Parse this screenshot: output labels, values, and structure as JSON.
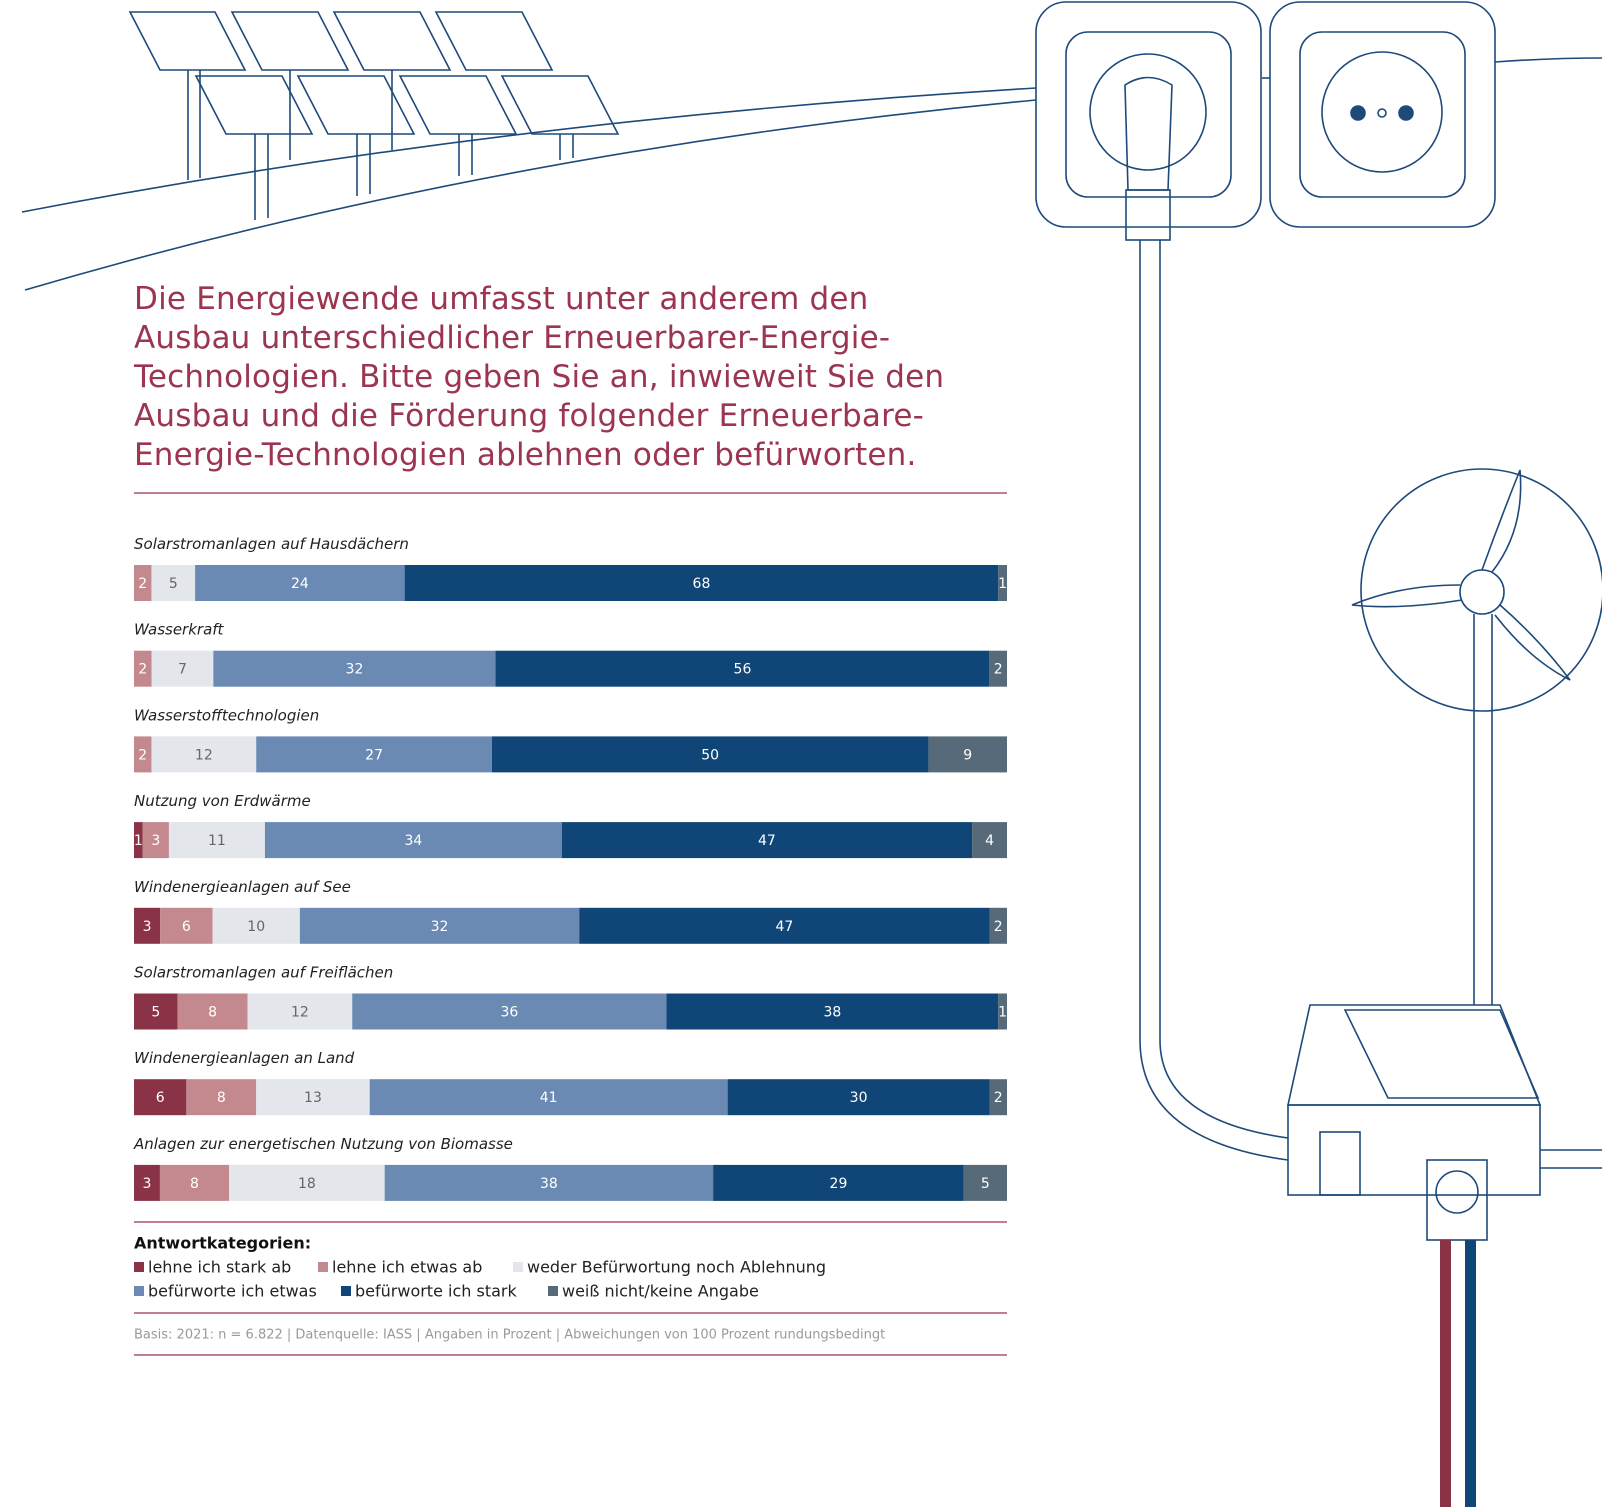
{
  "chart_data": {
    "type": "stacked-bar-horizontal",
    "title": "Die Energiewende umfasst unter anderem den Ausbau unterschiedlicher Erneuerbarer-Energie-Technologien. Bitte geben Sie an, inwieweit Sie den Ausbau und die Förderung folgender Erneuerbare-Energie-Technologien ablehnen oder befürworten.",
    "categories": [
      "Solarstromanlagen auf Hausdächern",
      "Wasserkraft",
      "Wasserstofftechnologien",
      "Nutzung von Erdwärme",
      "Windenergieanlagen auf See",
      "Solarstromanlagen auf Freiflächen",
      "Windenergieanlagen an Land",
      "Anlagen zur energetischen Nutzung von Biomasse"
    ],
    "series": [
      {
        "name": "lehne ich stark ab",
        "color": "#8b3346",
        "values": [
          null,
          null,
          null,
          1,
          3,
          5,
          6,
          3
        ]
      },
      {
        "name": "lehne ich etwas ab",
        "color": "#c4898f",
        "values": [
          2,
          2,
          2,
          3,
          6,
          8,
          8,
          8
        ]
      },
      {
        "name": "weder Befürwortung noch Ablehnung",
        "color": "#e3e6ea",
        "values": [
          5,
          7,
          12,
          11,
          10,
          12,
          13,
          18
        ]
      },
      {
        "name": "befürworte ich etwas",
        "color": "#6a8ab3",
        "values": [
          24,
          32,
          27,
          34,
          32,
          36,
          41,
          38
        ]
      },
      {
        "name": "befürworte ich stark",
        "color": "#0f4677",
        "values": [
          68,
          56,
          50,
          47,
          47,
          38,
          30,
          29
        ]
      },
      {
        "name": "weiß nicht/keine Angabe",
        "color": "#566a79",
        "values": [
          1,
          2,
          9,
          4,
          2,
          1,
          2,
          5
        ]
      }
    ],
    "legend_title": "Antwortkategorien:",
    "note": "Basis: 2021: n = 6.822 | Datenquelle: IASS | Angaben in Prozent | Abweichungen von 100 Prozent rundungsbedingt"
  }
}
